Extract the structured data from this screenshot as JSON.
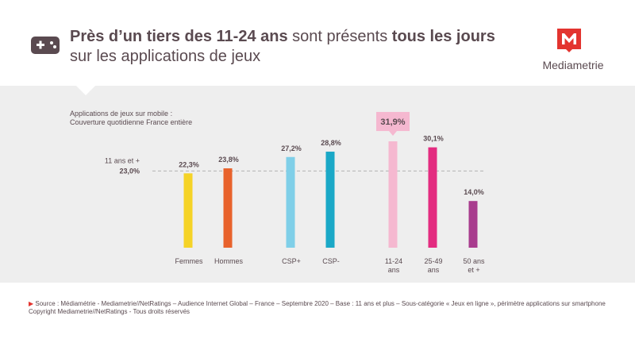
{
  "header": {
    "title_parts": [
      {
        "text": "Près d’un tiers des 11-24 ans",
        "bold": true
      },
      {
        "text": " sont présents ",
        "bold": false
      },
      {
        "text": "tous les jours",
        "bold": true
      }
    ],
    "title_line2": "sur les applications de jeux",
    "game_icon": "gamepad-icon",
    "logo_text": "Mediametrie",
    "logo_icon": "mediametrie-m-logo"
  },
  "chart_data": {
    "type": "bar",
    "title_lines": [
      "Applications de jeux sur mobile :",
      "Couverture quotidienne France entière"
    ],
    "categories": [
      {
        "lines": [
          "Femmes"
        ]
      },
      {
        "lines": [
          "Hommes"
        ]
      },
      {
        "lines": [
          "CSP+"
        ]
      },
      {
        "lines": [
          "CSP-"
        ]
      },
      {
        "lines": [
          "11-24",
          "ans"
        ]
      },
      {
        "lines": [
          "25-49",
          "ans"
        ]
      },
      {
        "lines": [
          "50 ans",
          "et +"
        ]
      }
    ],
    "values": [
      22.3,
      23.8,
      27.2,
      28.8,
      31.9,
      30.1,
      14.0
    ],
    "value_labels": [
      "22,3%",
      "23,8%",
      "27,2%",
      "28,8%",
      "31,9%",
      "30,1%",
      "14,0%"
    ],
    "colors": [
      "#f5d327",
      "#e8622c",
      "#7fcfe8",
      "#1aa8c7",
      "#f5b8d0",
      "#e32c80",
      "#a83c8e"
    ],
    "highlight_index": 4,
    "highlight_color": "#f5b8d0",
    "reference": {
      "label": "11 ans et +",
      "value": 23.0,
      "value_label": "23,0%"
    },
    "ylim": [
      0,
      35
    ]
  },
  "footer": {
    "marker": "▶",
    "source": " Source : Médiamétrie - Mediametrie//NetRatings – Audience Internet Global – France – Septembre 2020 – Base : 11 ans et plus – Sous-catégorie « Jeux en ligne », périmètre applications sur smartphone",
    "copyright": "Copyright Mediametrie//NetRatings - Tous droits réservés"
  }
}
